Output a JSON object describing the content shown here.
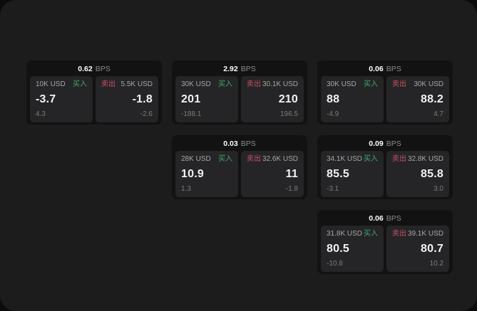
{
  "labels": {
    "bps_suffix": "BPS",
    "buy": "买入",
    "sell": "卖出"
  },
  "colors": {
    "page_bg": "#0b0b0b",
    "panel_bg": "#1c1c1d",
    "card_bg": "#121212",
    "tile_bg": "#252527",
    "buy_green": "#3fa96c",
    "sell_red": "#cb5062",
    "text_primary": "#f2f2f2",
    "text_secondary": "#a6a6a6",
    "text_muted": "#7b7b7b",
    "text_unit": "#8e8e8e"
  },
  "cards": [
    {
      "bps": "0.62",
      "buy": {
        "amount": "10K USD",
        "value": "-3.7",
        "delta": "4.3"
      },
      "sell": {
        "amount": "5.5K USD",
        "value": "-1.8",
        "delta": "-2.6"
      }
    },
    {
      "bps": "2.92",
      "buy": {
        "amount": "30K USD",
        "value": "201",
        "delta": "-188.1"
      },
      "sell": {
        "amount": "30.1K USD",
        "value": "210",
        "delta": "196.5"
      }
    },
    {
      "bps": "0.06",
      "buy": {
        "amount": "30K USD",
        "value": "88",
        "delta": "-4.9"
      },
      "sell": {
        "amount": "30K USD",
        "value": "88.2",
        "delta": "4.7"
      }
    },
    {
      "bps": "0.03",
      "buy": {
        "amount": "28K USD",
        "value": "10.9",
        "delta": "1.3"
      },
      "sell": {
        "amount": "32.6K USD",
        "value": "11",
        "delta": "-1.8"
      }
    },
    {
      "bps": "0.09",
      "buy": {
        "amount": "34.1K USD",
        "value": "85.5",
        "delta": "-3.1"
      },
      "sell": {
        "amount": "32.8K USD",
        "value": "85.8",
        "delta": "3.0"
      }
    },
    {
      "bps": "0.06",
      "buy": {
        "amount": "31.8K USD",
        "value": "80.5",
        "delta": "-10.8"
      },
      "sell": {
        "amount": "39.1K USD",
        "value": "80.7",
        "delta": "10.2"
      }
    }
  ]
}
